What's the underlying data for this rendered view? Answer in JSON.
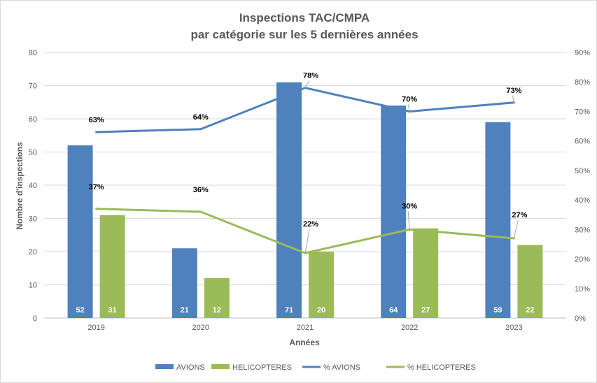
{
  "chart_data": {
    "type": "bar",
    "title_line1": "Inspections TAC/CMPA",
    "title_line2": "par catégorie  sur les 5 dernières années",
    "xlabel": "Années",
    "ylabel": "Nombre d'inspections",
    "categories": [
      "2019",
      "2020",
      "2021",
      "2022",
      "2023"
    ],
    "ylim": [
      0,
      80
    ],
    "y_ticks": [
      "0",
      "10",
      "20",
      "30",
      "40",
      "50",
      "60",
      "70",
      "80"
    ],
    "y2lim": [
      0,
      90
    ],
    "y2_ticks": [
      "0%",
      "10%",
      "20%",
      "30%",
      "40%",
      "50%",
      "60%",
      "70%",
      "80%",
      "90%"
    ],
    "grid": true,
    "legend_position": "bottom",
    "series": [
      {
        "name": "AVIONS",
        "type": "bar",
        "axis": "left",
        "color": "#4f81bd",
        "values": [
          52,
          21,
          71,
          64,
          59
        ],
        "labels": [
          "52",
          "21",
          "71",
          "64",
          "59"
        ]
      },
      {
        "name": "HELICOPTERES",
        "type": "bar",
        "axis": "left",
        "color": "#9bbb59",
        "values": [
          31,
          12,
          20,
          27,
          22
        ],
        "labels": [
          "31",
          "12",
          "20",
          "27",
          "22"
        ]
      },
      {
        "name": "% AVIONS",
        "type": "line",
        "axis": "right",
        "color": "#4f81bd",
        "values": [
          63,
          64,
          78,
          70,
          73
        ],
        "labels": [
          "63%",
          "64%",
          "78%",
          "70%",
          "73%"
        ]
      },
      {
        "name": "% HELICOPTERES",
        "type": "line",
        "axis": "right",
        "color": "#9bbb59",
        "values": [
          37,
          36,
          22,
          30,
          27
        ],
        "labels": [
          "37%",
          "36%",
          "22%",
          "30%",
          "27%"
        ]
      }
    ]
  }
}
